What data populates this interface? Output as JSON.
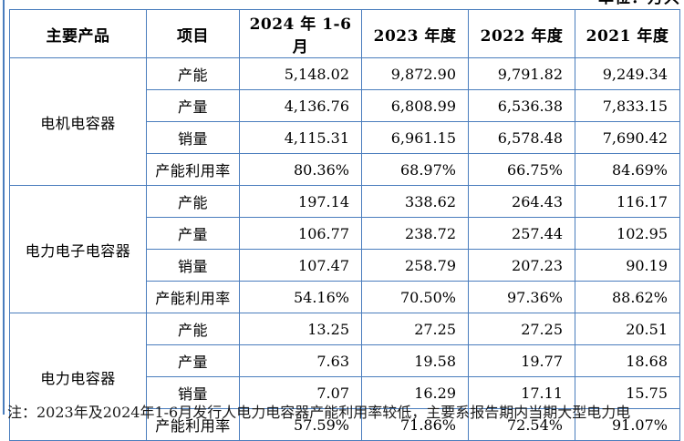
{
  "meta": {
    "unit_note": "单位：万只",
    "footnote": "注：2023年及2024年1-6月发行人电力电容器产能利用率较低，主要系报告期内当期大型电力电"
  },
  "colors": {
    "border_blue": "#4a7dbd",
    "text": "#000000",
    "background": "#ffffff"
  },
  "table": {
    "headers": [
      "主要产品",
      "项目",
      "2024 年 1-6 月",
      "2023 年度",
      "2022 年度",
      "2021 年度"
    ],
    "groups": [
      {
        "product": "电机电容器",
        "rows": [
          {
            "item": "产能",
            "values": [
              "5,148.02",
              "9,872.90",
              "9,791.82",
              "9,249.34"
            ]
          },
          {
            "item": "产量",
            "values": [
              "4,136.76",
              "6,808.99",
              "6,536.38",
              "7,833.15"
            ]
          },
          {
            "item": "销量",
            "values": [
              "4,115.31",
              "6,961.15",
              "6,578.48",
              "7,690.42"
            ]
          },
          {
            "item": "产能利用率",
            "values": [
              "80.36%",
              "68.97%",
              "66.75%",
              "84.69%"
            ]
          }
        ]
      },
      {
        "product": "电力电子电容器",
        "rows": [
          {
            "item": "产能",
            "values": [
              "197.14",
              "338.62",
              "264.43",
              "116.17"
            ]
          },
          {
            "item": "产量",
            "values": [
              "106.77",
              "238.72",
              "257.44",
              "102.95"
            ]
          },
          {
            "item": "销量",
            "values": [
              "107.47",
              "258.79",
              "207.23",
              "90.19"
            ]
          },
          {
            "item": "产能利用率",
            "values": [
              "54.16%",
              "70.50%",
              "97.36%",
              "88.62%"
            ]
          }
        ]
      },
      {
        "product": "电力电容器",
        "rows": [
          {
            "item": "产能",
            "values": [
              "13.25",
              "27.25",
              "27.25",
              "20.51"
            ]
          },
          {
            "item": "产量",
            "values": [
              "7.63",
              "19.58",
              "19.77",
              "18.68"
            ]
          },
          {
            "item": "销量",
            "values": [
              "7.07",
              "16.29",
              "17.11",
              "15.75"
            ]
          },
          {
            "item": "产能利用率",
            "values": [
              "57.59%",
              "71.86%",
              "72.54%",
              "91.07%"
            ]
          }
        ]
      }
    ]
  }
}
